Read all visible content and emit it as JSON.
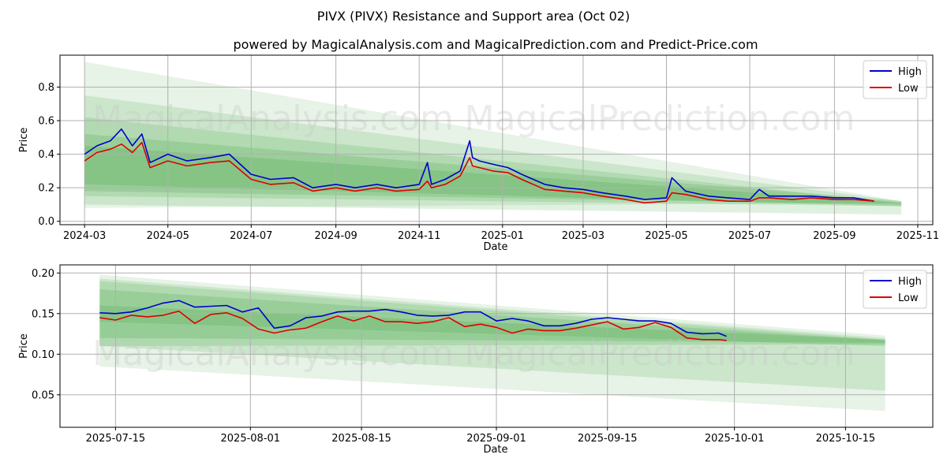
{
  "title": "PIVX (PIVX) Resistance and Support area (Oct 02)",
  "subtitle": "powered by MagicalAnalysis.com and MagicalPrediction.com and Predict-Price.com",
  "watermarks": [
    "MagicalAnalysis.com",
    "MagicalPrediction.com"
  ],
  "colors": {
    "high": "#0000cc",
    "low": "#dd0000",
    "band": "#2e9c2e"
  },
  "chart_data": [
    {
      "type": "line",
      "xlabel": "Date",
      "ylabel": "Price",
      "xlim": [
        "2024-02-12",
        "2025-11-12"
      ],
      "ylim": [
        -0.02,
        0.99
      ],
      "xticks": [
        "2024-03",
        "2024-05",
        "2024-07",
        "2024-09",
        "2024-11",
        "2025-01",
        "2025-03",
        "2025-05",
        "2025-07",
        "2025-09",
        "2025-11"
      ],
      "yticks": [
        "0.0",
        "0.2",
        "0.4",
        "0.6",
        "0.8"
      ],
      "legend": {
        "position": "top-right",
        "entries": [
          "High",
          "Low"
        ]
      },
      "bands": [
        {
          "x": [
            "2024-03-01",
            "2025-10-20"
          ],
          "upper": [
            0.95,
            0.12
          ],
          "lower": [
            0.08,
            0.11
          ],
          "opacity": 0.12
        },
        {
          "x": [
            "2024-03-01",
            "2025-10-20"
          ],
          "upper": [
            0.75,
            0.12
          ],
          "lower": [
            0.1,
            0.04
          ],
          "opacity": 0.14
        },
        {
          "x": [
            "2024-03-01",
            "2025-10-20"
          ],
          "upper": [
            0.62,
            0.11
          ],
          "lower": [
            0.15,
            0.09
          ],
          "opacity": 0.16
        },
        {
          "x": [
            "2024-03-01",
            "2025-10-20"
          ],
          "upper": [
            0.52,
            0.12
          ],
          "lower": [
            0.18,
            0.1
          ],
          "opacity": 0.18
        },
        {
          "x": [
            "2024-03-01",
            "2025-10-20"
          ],
          "upper": [
            0.45,
            0.11
          ],
          "lower": [
            0.22,
            0.09
          ],
          "opacity": 0.18
        }
      ],
      "series": [
        {
          "name": "High",
          "x": [
            "2024-03-01",
            "2024-03-10",
            "2024-03-20",
            "2024-03-28",
            "2024-04-05",
            "2024-04-12",
            "2024-04-18",
            "2024-05-01",
            "2024-05-15",
            "2024-06-01",
            "2024-06-15",
            "2024-07-01",
            "2024-07-15",
            "2024-08-01",
            "2024-08-15",
            "2024-09-01",
            "2024-09-15",
            "2024-10-01",
            "2024-10-15",
            "2024-11-01",
            "2024-11-07",
            "2024-11-10",
            "2024-11-20",
            "2024-12-01",
            "2024-12-08",
            "2024-12-10",
            "2024-12-15",
            "2024-12-25",
            "2025-01-05",
            "2025-01-15",
            "2025-02-01",
            "2025-02-15",
            "2025-03-01",
            "2025-03-15",
            "2025-04-01",
            "2025-04-15",
            "2025-05-01",
            "2025-05-05",
            "2025-05-15",
            "2025-06-01",
            "2025-06-15",
            "2025-07-01",
            "2025-07-08",
            "2025-07-15",
            "2025-08-01",
            "2025-08-15",
            "2025-09-01",
            "2025-09-15",
            "2025-09-30"
          ],
          "values": [
            0.4,
            0.45,
            0.48,
            0.55,
            0.45,
            0.52,
            0.35,
            0.4,
            0.36,
            0.38,
            0.4,
            0.28,
            0.25,
            0.26,
            0.2,
            0.22,
            0.2,
            0.22,
            0.2,
            0.22,
            0.35,
            0.22,
            0.25,
            0.3,
            0.48,
            0.38,
            0.36,
            0.34,
            0.32,
            0.28,
            0.22,
            0.2,
            0.19,
            0.17,
            0.15,
            0.13,
            0.14,
            0.26,
            0.18,
            0.15,
            0.14,
            0.13,
            0.19,
            0.15,
            0.15,
            0.15,
            0.14,
            0.14,
            0.12
          ]
        },
        {
          "name": "Low",
          "x": [
            "2024-03-01",
            "2024-03-10",
            "2024-03-20",
            "2024-03-28",
            "2024-04-05",
            "2024-04-12",
            "2024-04-18",
            "2024-05-01",
            "2024-05-15",
            "2024-06-01",
            "2024-06-15",
            "2024-07-01",
            "2024-07-15",
            "2024-08-01",
            "2024-08-15",
            "2024-09-01",
            "2024-09-15",
            "2024-10-01",
            "2024-10-15",
            "2024-11-01",
            "2024-11-07",
            "2024-11-10",
            "2024-11-20",
            "2024-12-01",
            "2024-12-08",
            "2024-12-10",
            "2024-12-15",
            "2024-12-25",
            "2025-01-05",
            "2025-01-15",
            "2025-02-01",
            "2025-02-15",
            "2025-03-01",
            "2025-03-15",
            "2025-04-01",
            "2025-04-15",
            "2025-05-01",
            "2025-05-05",
            "2025-05-15",
            "2025-06-01",
            "2025-06-15",
            "2025-07-01",
            "2025-07-08",
            "2025-07-15",
            "2025-08-01",
            "2025-08-15",
            "2025-09-01",
            "2025-09-15",
            "2025-09-30"
          ],
          "values": [
            0.36,
            0.41,
            0.43,
            0.46,
            0.41,
            0.47,
            0.32,
            0.36,
            0.33,
            0.35,
            0.36,
            0.25,
            0.22,
            0.23,
            0.18,
            0.2,
            0.18,
            0.2,
            0.18,
            0.19,
            0.24,
            0.2,
            0.22,
            0.27,
            0.38,
            0.33,
            0.32,
            0.3,
            0.29,
            0.25,
            0.19,
            0.18,
            0.17,
            0.15,
            0.13,
            0.11,
            0.12,
            0.17,
            0.16,
            0.13,
            0.12,
            0.12,
            0.14,
            0.14,
            0.13,
            0.14,
            0.13,
            0.13,
            0.12
          ]
        }
      ]
    },
    {
      "type": "line",
      "xlabel": "Date",
      "ylabel": "Price",
      "xlim": [
        "2025-07-08",
        "2025-10-26"
      ],
      "ylim": [
        0.01,
        0.21
      ],
      "xticks": [
        "2025-07-15",
        "2025-08-01",
        "2025-08-15",
        "2025-09-01",
        "2025-09-15",
        "2025-10-01",
        "2025-10-15"
      ],
      "yticks": [
        "0.05",
        "0.10",
        "0.15",
        "0.20"
      ],
      "legend": {
        "position": "top-right",
        "entries": [
          "High",
          "Low"
        ]
      },
      "bands": [
        {
          "x": [
            "2025-07-13",
            "2025-10-20"
          ],
          "upper": [
            0.198,
            0.123
          ],
          "lower": [
            0.085,
            0.03
          ],
          "opacity": 0.12
        },
        {
          "x": [
            "2025-07-13",
            "2025-10-20"
          ],
          "upper": [
            0.193,
            0.12
          ],
          "lower": [
            0.11,
            0.055
          ],
          "opacity": 0.14
        },
        {
          "x": [
            "2025-07-13",
            "2025-10-20"
          ],
          "upper": [
            0.19,
            0.118
          ],
          "lower": [
            0.14,
            0.11
          ],
          "opacity": 0.16
        },
        {
          "x": [
            "2025-07-13",
            "2025-10-20"
          ],
          "upper": [
            0.18,
            0.117
          ],
          "lower": [
            0.11,
            0.112
          ],
          "opacity": 0.18
        },
        {
          "x": [
            "2025-07-13",
            "2025-10-20"
          ],
          "upper": [
            0.16,
            0.118
          ],
          "lower": [
            0.12,
            0.114
          ],
          "opacity": 0.18
        }
      ],
      "series": [
        {
          "name": "High",
          "x": [
            "2025-07-13",
            "2025-07-15",
            "2025-07-17",
            "2025-07-19",
            "2025-07-21",
            "2025-07-23",
            "2025-07-25",
            "2025-07-27",
            "2025-07-29",
            "2025-07-31",
            "2025-08-02",
            "2025-08-04",
            "2025-08-06",
            "2025-08-08",
            "2025-08-10",
            "2025-08-12",
            "2025-08-14",
            "2025-08-16",
            "2025-08-18",
            "2025-08-20",
            "2025-08-22",
            "2025-08-24",
            "2025-08-26",
            "2025-08-28",
            "2025-08-30",
            "2025-09-01",
            "2025-09-03",
            "2025-09-05",
            "2025-09-07",
            "2025-09-09",
            "2025-09-11",
            "2025-09-13",
            "2025-09-15",
            "2025-09-17",
            "2025-09-19",
            "2025-09-21",
            "2025-09-23",
            "2025-09-25",
            "2025-09-27",
            "2025-09-29",
            "2025-09-30"
          ],
          "values": [
            0.151,
            0.15,
            0.152,
            0.157,
            0.163,
            0.166,
            0.158,
            0.159,
            0.16,
            0.152,
            0.157,
            0.132,
            0.135,
            0.145,
            0.147,
            0.152,
            0.153,
            0.153,
            0.155,
            0.152,
            0.148,
            0.147,
            0.148,
            0.152,
            0.152,
            0.141,
            0.144,
            0.141,
            0.135,
            0.135,
            0.138,
            0.143,
            0.145,
            0.143,
            0.141,
            0.141,
            0.138,
            0.127,
            0.125,
            0.126,
            0.122
          ]
        },
        {
          "name": "Low",
          "x": [
            "2025-07-13",
            "2025-07-15",
            "2025-07-17",
            "2025-07-19",
            "2025-07-21",
            "2025-07-23",
            "2025-07-25",
            "2025-07-27",
            "2025-07-29",
            "2025-07-31",
            "2025-08-02",
            "2025-08-04",
            "2025-08-06",
            "2025-08-08",
            "2025-08-10",
            "2025-08-12",
            "2025-08-14",
            "2025-08-16",
            "2025-08-18",
            "2025-08-20",
            "2025-08-22",
            "2025-08-24",
            "2025-08-26",
            "2025-08-28",
            "2025-08-30",
            "2025-09-01",
            "2025-09-03",
            "2025-09-05",
            "2025-09-07",
            "2025-09-09",
            "2025-09-11",
            "2025-09-13",
            "2025-09-15",
            "2025-09-17",
            "2025-09-19",
            "2025-09-21",
            "2025-09-23",
            "2025-09-25",
            "2025-09-27",
            "2025-09-29",
            "2025-09-30"
          ],
          "values": [
            0.145,
            0.142,
            0.148,
            0.146,
            0.148,
            0.153,
            0.138,
            0.149,
            0.151,
            0.144,
            0.131,
            0.126,
            0.13,
            0.132,
            0.14,
            0.147,
            0.141,
            0.147,
            0.14,
            0.14,
            0.138,
            0.14,
            0.145,
            0.134,
            0.137,
            0.133,
            0.126,
            0.131,
            0.129,
            0.129,
            0.132,
            0.136,
            0.14,
            0.131,
            0.133,
            0.139,
            0.133,
            0.12,
            0.118,
            0.118,
            0.117
          ]
        }
      ]
    }
  ]
}
